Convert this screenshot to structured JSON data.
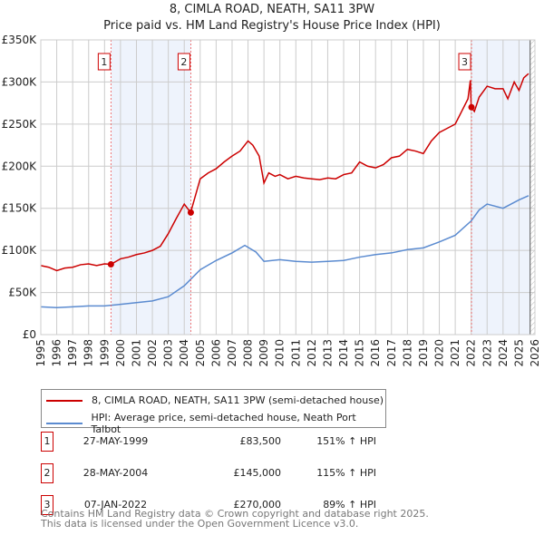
{
  "chart_data": {
    "type": "line",
    "title": "8, CIMLA ROAD, NEATH, SA11 3PW",
    "subtitle": "Price paid vs. HM Land Registry's House Price Index (HPI)",
    "xlim": [
      1995,
      2026
    ],
    "ylim": [
      0,
      350000
    ],
    "x_ticks": [
      "1995",
      "1996",
      "1997",
      "1998",
      "1999",
      "2000",
      "2001",
      "2002",
      "2003",
      "2004",
      "2005",
      "2006",
      "2007",
      "2008",
      "2009",
      "2010",
      "2011",
      "2012",
      "2013",
      "2014",
      "2015",
      "2016",
      "2017",
      "2018",
      "2019",
      "2020",
      "2021",
      "2022",
      "2023",
      "2024",
      "2025",
      "2026"
    ],
    "y_ticks": [
      {
        "v": 0,
        "label": "£0"
      },
      {
        "v": 50000,
        "label": "£50K"
      },
      {
        "v": 100000,
        "label": "£100K"
      },
      {
        "v": 150000,
        "label": "£150K"
      },
      {
        "v": 200000,
        "label": "£200K"
      },
      {
        "v": 250000,
        "label": "£250K"
      },
      {
        "v": 300000,
        "label": "£300K"
      },
      {
        "v": 350000,
        "label": "£350K"
      }
    ],
    "grid": true,
    "series": [
      {
        "name": "8, CIMLA ROAD, NEATH, SA11 3PW (semi-detached house)",
        "color": "#cc0000",
        "x": [
          1995,
          1995.5,
          1996,
          1996.5,
          1997,
          1997.5,
          1998,
          1998.5,
          1999,
          1999.4,
          2000,
          2000.5,
          2001,
          2001.5,
          2002,
          2002.5,
          2003,
          2003.5,
          2004,
          2004.4,
          2004.7,
          2005,
          2005.5,
          2006,
          2006.5,
          2007,
          2007.5,
          2008,
          2008.3,
          2008.7,
          2009,
          2009.3,
          2009.7,
          2010,
          2010.5,
          2011,
          2011.5,
          2012,
          2012.5,
          2013,
          2013.5,
          2014,
          2014.5,
          2015,
          2015.5,
          2016,
          2016.5,
          2017,
          2017.5,
          2018,
          2018.5,
          2019,
          2019.5,
          2020,
          2020.5,
          2021,
          2021.4,
          2021.8,
          2021.95,
          2022.0,
          2022.2,
          2022.5,
          2023,
          2023.5,
          2024,
          2024.3,
          2024.7,
          2025,
          2025.3,
          2025.6
        ],
        "y": [
          82000,
          80000,
          76000,
          79000,
          80000,
          83000,
          84000,
          82000,
          84000,
          83500,
          90000,
          92000,
          95000,
          97000,
          100000,
          105000,
          120000,
          138000,
          155000,
          145000,
          165000,
          185000,
          192000,
          197000,
          205000,
          212000,
          218000,
          230000,
          225000,
          212000,
          180000,
          192000,
          188000,
          190000,
          185000,
          188000,
          186000,
          185000,
          184000,
          186000,
          185000,
          190000,
          192000,
          205000,
          200000,
          198000,
          202000,
          210000,
          212000,
          220000,
          218000,
          215000,
          230000,
          240000,
          245000,
          250000,
          265000,
          280000,
          302000,
          270000,
          265000,
          282000,
          295000,
          292000,
          292000,
          280000,
          300000,
          290000,
          305000,
          310000
        ]
      },
      {
        "name": "HPI: Average price, semi-detached house, Neath Port Talbot",
        "color": "#5b8bd0",
        "x": [
          1995,
          1996,
          1997,
          1998,
          1999,
          2000,
          2001,
          2002,
          2003,
          2004,
          2005,
          2006,
          2007,
          2007.8,
          2008.5,
          2009,
          2010,
          2011,
          2012,
          2013,
          2014,
          2015,
          2016,
          2017,
          2018,
          2019,
          2020,
          2021,
          2022,
          2022.5,
          2023,
          2024,
          2024.5,
          2025,
          2025.6
        ],
        "y": [
          33000,
          32000,
          33000,
          34000,
          34000,
          36000,
          38000,
          40000,
          45000,
          58000,
          77000,
          88000,
          97000,
          106000,
          98000,
          87000,
          89000,
          87000,
          86000,
          87000,
          88000,
          92000,
          95000,
          97000,
          101000,
          103000,
          110000,
          118000,
          135000,
          148000,
          155000,
          150000,
          155000,
          160000,
          165000
        ]
      }
    ],
    "events": [
      {
        "id": "1",
        "x": 1999.4,
        "y": 83500
      },
      {
        "id": "2",
        "x": 2004.41,
        "y": 145000
      },
      {
        "id": "3",
        "x": 2022.02,
        "y": 270000
      }
    ],
    "shaded": [
      [
        1999.4,
        2004.41
      ],
      [
        2022.02,
        2025.7
      ]
    ]
  },
  "legend": [
    "8, CIMLA ROAD, NEATH, SA11 3PW (semi-detached house)",
    "HPI: Average price, semi-detached house, Neath Port Talbot"
  ],
  "sales": [
    {
      "id": "1",
      "date": "27-MAY-1999",
      "price": "£83,500",
      "hpi": "151% ↑ HPI"
    },
    {
      "id": "2",
      "date": "28-MAY-2004",
      "price": "£145,000",
      "hpi": "115% ↑ HPI"
    },
    {
      "id": "3",
      "date": "07-JAN-2022",
      "price": "£270,000",
      "hpi": "89% ↑ HPI"
    }
  ],
  "footer": [
    "Contains HM Land Registry data © Crown copyright and database right 2025.",
    "This data is licensed under the Open Government Licence v3.0."
  ]
}
